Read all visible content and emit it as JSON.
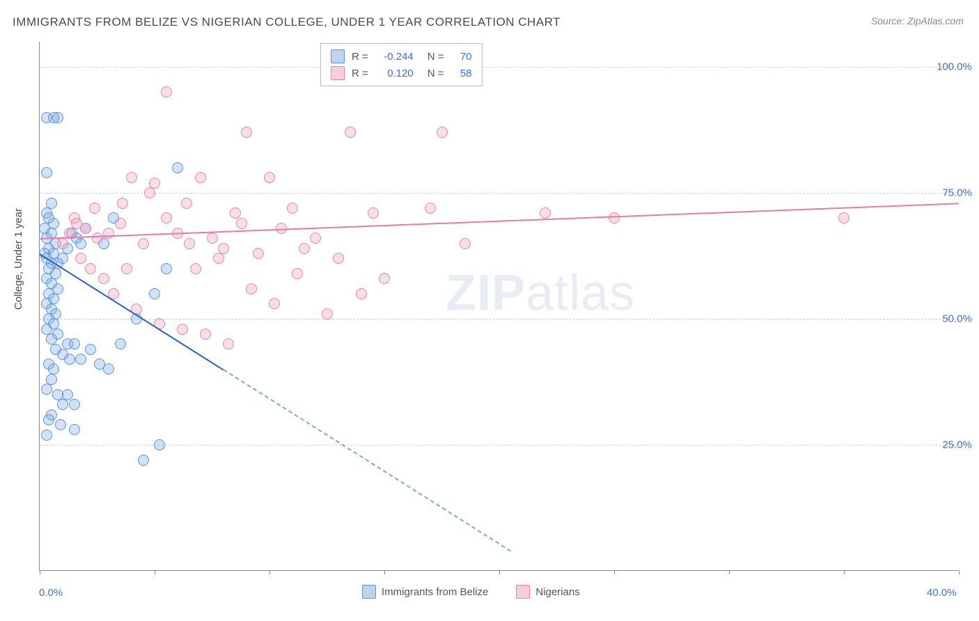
{
  "title": "IMMIGRANTS FROM BELIZE VS NIGERIAN COLLEGE, UNDER 1 YEAR CORRELATION CHART",
  "source": "Source: ZipAtlas.com",
  "ylabel": "College, Under 1 year",
  "watermark_zip": "ZIP",
  "watermark_atlas": "atlas",
  "chart": {
    "type": "scatter",
    "xlim": [
      0,
      40
    ],
    "ylim": [
      0,
      105
    ],
    "xticks": [
      0,
      5,
      10,
      15,
      20,
      25,
      30,
      35,
      40
    ],
    "xtick_labels": {
      "0": "0.0%",
      "40": "40.0%"
    },
    "yticks": [
      25,
      50,
      75,
      100
    ],
    "ytick_labels": {
      "25": "25.0%",
      "50": "50.0%",
      "75": "75.0%",
      "100": "100.0%"
    },
    "background_color": "#ffffff",
    "grid_color": "#d0d0d0",
    "axis_color": "#888888",
    "label_color": "#3b6fd6",
    "title_color": "#4a4a4a",
    "marker_size": 16,
    "series": {
      "belize": {
        "label": "Immigrants from Belize",
        "color_fill": "rgba(122,170,230,0.35)",
        "color_stroke": "#5a95d8",
        "R": "-0.244",
        "N": "70",
        "trend": {
          "x1": 0,
          "y1": 63,
          "x2": 8,
          "y2": 40,
          "color": "#2a5fc7",
          "width": 2
        },
        "trend_dash": {
          "x1": 8,
          "y1": 40,
          "x2": 20.5,
          "y2": 4,
          "color": "#7aa8e0",
          "width": 2
        },
        "points": [
          [
            0.3,
            90
          ],
          [
            0.8,
            90
          ],
          [
            0.3,
            79
          ],
          [
            0.5,
            73
          ],
          [
            0.3,
            71
          ],
          [
            0.4,
            70
          ],
          [
            0.6,
            69
          ],
          [
            0.2,
            68
          ],
          [
            0.5,
            67
          ],
          [
            0.3,
            66
          ],
          [
            0.7,
            65
          ],
          [
            0.4,
            64
          ],
          [
            0.2,
            63
          ],
          [
            0.6,
            63
          ],
          [
            0.3,
            62
          ],
          [
            0.5,
            61
          ],
          [
            0.8,
            61
          ],
          [
            1.0,
            62
          ],
          [
            1.2,
            64
          ],
          [
            1.4,
            67
          ],
          [
            1.6,
            66
          ],
          [
            1.8,
            65
          ],
          [
            2.0,
            68
          ],
          [
            0.4,
            60
          ],
          [
            0.7,
            59
          ],
          [
            0.3,
            58
          ],
          [
            0.5,
            57
          ],
          [
            0.8,
            56
          ],
          [
            0.4,
            55
          ],
          [
            0.6,
            54
          ],
          [
            0.3,
            53
          ],
          [
            0.5,
            52
          ],
          [
            0.7,
            51
          ],
          [
            0.4,
            50
          ],
          [
            0.6,
            49
          ],
          [
            0.3,
            48
          ],
          [
            0.8,
            47
          ],
          [
            0.5,
            46
          ],
          [
            1.2,
            45
          ],
          [
            1.5,
            45
          ],
          [
            0.7,
            44
          ],
          [
            1.0,
            43
          ],
          [
            1.3,
            42
          ],
          [
            0.4,
            41
          ],
          [
            0.6,
            40
          ],
          [
            1.8,
            42
          ],
          [
            2.2,
            44
          ],
          [
            0.5,
            38
          ],
          [
            0.3,
            36
          ],
          [
            0.8,
            35
          ],
          [
            1.0,
            33
          ],
          [
            0.5,
            31
          ],
          [
            2.6,
            41
          ],
          [
            1.2,
            35
          ],
          [
            1.5,
            33
          ],
          [
            0.4,
            30
          ],
          [
            0.9,
            29
          ],
          [
            0.3,
            27
          ],
          [
            1.5,
            28
          ],
          [
            3.0,
            40
          ],
          [
            3.5,
            45
          ],
          [
            4.2,
            50
          ],
          [
            5.0,
            55
          ],
          [
            5.5,
            60
          ],
          [
            6.0,
            80
          ],
          [
            2.8,
            65
          ],
          [
            3.2,
            70
          ],
          [
            5.2,
            25
          ],
          [
            4.5,
            22
          ],
          [
            0.6,
            90
          ]
        ]
      },
      "nigerians": {
        "label": "Nigerians",
        "color_fill": "rgba(240,160,185,0.35)",
        "color_stroke": "#e585a8",
        "R": "0.120",
        "N": "58",
        "trend": {
          "x1": 0,
          "y1": 66,
          "x2": 40,
          "y2": 73,
          "color": "#e97ba2",
          "width": 2
        },
        "points": [
          [
            5.5,
            95
          ],
          [
            1.5,
            70
          ],
          [
            2.0,
            68
          ],
          [
            2.5,
            66
          ],
          [
            3.0,
            67
          ],
          [
            3.5,
            69
          ],
          [
            4.0,
            78
          ],
          [
            4.5,
            65
          ],
          [
            5.0,
            77
          ],
          [
            5.5,
            70
          ],
          [
            6.0,
            67
          ],
          [
            6.5,
            65
          ],
          [
            7.0,
            78
          ],
          [
            7.5,
            66
          ],
          [
            8.0,
            64
          ],
          [
            8.5,
            71
          ],
          [
            9.0,
            87
          ],
          [
            9.5,
            63
          ],
          [
            10.0,
            78
          ],
          [
            10.5,
            68
          ],
          [
            11.0,
            72
          ],
          [
            11.5,
            64
          ],
          [
            12.0,
            66
          ],
          [
            13.0,
            62
          ],
          [
            13.5,
            87
          ],
          [
            14.0,
            55
          ],
          [
            14.5,
            71
          ],
          [
            15.0,
            58
          ],
          [
            17.0,
            72
          ],
          [
            17.5,
            87
          ],
          [
            18.5,
            65
          ],
          [
            22.0,
            71
          ],
          [
            25.0,
            70
          ],
          [
            35.0,
            70
          ],
          [
            1.8,
            62
          ],
          [
            2.2,
            60
          ],
          [
            2.8,
            58
          ],
          [
            3.2,
            55
          ],
          [
            4.2,
            52
          ],
          [
            5.2,
            49
          ],
          [
            6.2,
            48
          ],
          [
            7.2,
            47
          ],
          [
            8.2,
            45
          ],
          [
            1.0,
            65
          ],
          [
            1.3,
            67
          ],
          [
            1.6,
            69
          ],
          [
            2.4,
            72
          ],
          [
            3.6,
            73
          ],
          [
            4.8,
            75
          ],
          [
            6.4,
            73
          ],
          [
            8.8,
            69
          ],
          [
            11.2,
            59
          ],
          [
            12.5,
            51
          ],
          [
            9.2,
            56
          ],
          [
            10.2,
            53
          ],
          [
            6.8,
            60
          ],
          [
            7.8,
            62
          ],
          [
            3.8,
            60
          ]
        ]
      }
    }
  },
  "legend_stats": {
    "r_label": "R =",
    "n_label": "N ="
  }
}
